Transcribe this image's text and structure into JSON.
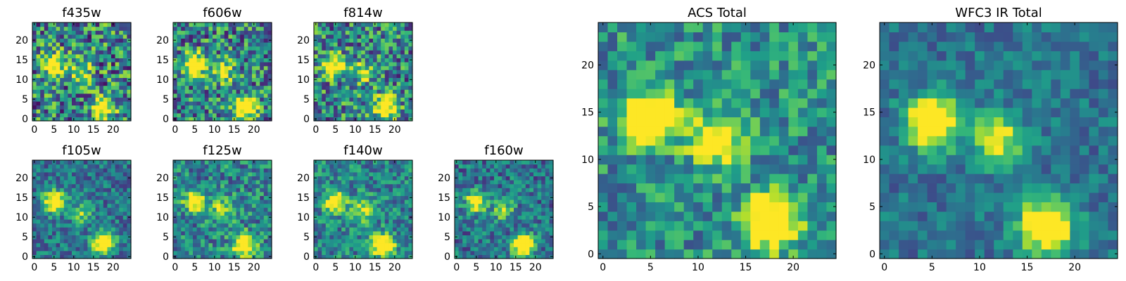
{
  "colormap": "viridis",
  "chart_data": [
    {
      "type": "heatmap",
      "title": "f435w",
      "grid": [
        25,
        25
      ],
      "xlim": [
        -0.5,
        24.5
      ],
      "ylim": [
        -0.5,
        24.5
      ],
      "xticks": [
        0,
        5,
        10,
        15,
        20
      ],
      "yticks": [
        0,
        5,
        10,
        15,
        20
      ],
      "sources": [
        {
          "x": 5,
          "y": 14,
          "level": 0.85
        },
        {
          "x": 12,
          "y": 12,
          "level": 0.55
        },
        {
          "x": 17.5,
          "y": 3,
          "level": 0.9
        }
      ],
      "noise": 0.42,
      "background": 0.45
    },
    {
      "type": "heatmap",
      "title": "f606w",
      "grid": [
        25,
        25
      ],
      "xlim": [
        -0.5,
        24.5
      ],
      "ylim": [
        -0.5,
        24.5
      ],
      "xticks": [
        0,
        5,
        10,
        15,
        20
      ],
      "yticks": [
        0,
        5,
        10,
        15,
        20
      ],
      "sources": [
        {
          "x": 5,
          "y": 14,
          "level": 0.9
        },
        {
          "x": 12,
          "y": 12,
          "level": 0.55
        },
        {
          "x": 18,
          "y": 3,
          "level": 0.95
        }
      ],
      "noise": 0.38,
      "background": 0.45
    },
    {
      "type": "heatmap",
      "title": "f814w",
      "grid": [
        25,
        25
      ],
      "xlim": [
        -0.5,
        24.5
      ],
      "ylim": [
        -0.5,
        24.5
      ],
      "xticks": [
        0,
        5,
        10,
        15,
        20
      ],
      "yticks": [
        0,
        5,
        10,
        15,
        20
      ],
      "sources": [
        {
          "x": 4.5,
          "y": 13.5,
          "level": 0.85
        },
        {
          "x": 12,
          "y": 12,
          "level": 0.5
        },
        {
          "x": 17.5,
          "y": 3,
          "level": 1.0
        }
      ],
      "noise": 0.38,
      "background": 0.45
    },
    {
      "type": "heatmap",
      "title": "f105w",
      "grid": [
        25,
        25
      ],
      "xlim": [
        -0.5,
        24.5
      ],
      "ylim": [
        -0.5,
        24.5
      ],
      "xticks": [
        0,
        5,
        10,
        15,
        20
      ],
      "yticks": [
        0,
        5,
        10,
        15,
        20
      ],
      "sources": [
        {
          "x": 5,
          "y": 14,
          "level": 0.9
        },
        {
          "x": 12,
          "y": 11,
          "level": 0.4
        },
        {
          "x": 17.5,
          "y": 3.5,
          "level": 1.0
        }
      ],
      "noise": 0.22,
      "background": 0.38
    },
    {
      "type": "heatmap",
      "title": "f125w",
      "grid": [
        25,
        25
      ],
      "xlim": [
        -0.5,
        24.5
      ],
      "ylim": [
        -0.5,
        24.5
      ],
      "xticks": [
        0,
        5,
        10,
        15,
        20
      ],
      "yticks": [
        0,
        5,
        10,
        15,
        20
      ],
      "sources": [
        {
          "x": 5,
          "y": 14,
          "level": 0.75
        },
        {
          "x": 12,
          "y": 12,
          "level": 0.5
        },
        {
          "x": 17.5,
          "y": 3,
          "level": 0.95
        }
      ],
      "noise": 0.28,
      "background": 0.45
    },
    {
      "type": "heatmap",
      "title": "f140w",
      "grid": [
        25,
        25
      ],
      "xlim": [
        -0.5,
        24.5
      ],
      "ylim": [
        -0.5,
        24.5
      ],
      "xticks": [
        0,
        5,
        10,
        15,
        20
      ],
      "yticks": [
        0,
        5,
        10,
        15,
        20
      ],
      "sources": [
        {
          "x": 5,
          "y": 14,
          "level": 0.7
        },
        {
          "x": 12,
          "y": 12,
          "level": 0.5
        },
        {
          "x": 17,
          "y": 3,
          "level": 1.0
        }
      ],
      "noise": 0.25,
      "background": 0.45
    },
    {
      "type": "heatmap",
      "title": "f160w",
      "grid": [
        25,
        25
      ],
      "xlim": [
        -0.5,
        24.5
      ],
      "ylim": [
        -0.5,
        24.5
      ],
      "xticks": [
        0,
        5,
        10,
        15,
        20
      ],
      "yticks": [
        0,
        5,
        10,
        15,
        20
      ],
      "sources": [
        {
          "x": 5,
          "y": 14,
          "level": 0.7
        },
        {
          "x": 12,
          "y": 12,
          "level": 0.45
        },
        {
          "x": 17,
          "y": 3,
          "level": 1.0
        }
      ],
      "noise": 0.25,
      "background": 0.38
    },
    {
      "type": "heatmap",
      "title": "ACS Total",
      "grid": [
        25,
        25
      ],
      "xlim": [
        -0.5,
        24.5
      ],
      "ylim": [
        -0.5,
        24.5
      ],
      "xticks": [
        0,
        5,
        10,
        15,
        20
      ],
      "yticks": [
        0,
        5,
        10,
        15,
        20
      ],
      "sources": [
        {
          "x": 5,
          "y": 14.5,
          "level": 1.0
        },
        {
          "x": 12,
          "y": 12,
          "level": 0.7
        },
        {
          "x": 17.5,
          "y": 3.5,
          "level": 1.0
        }
      ],
      "noise": 0.25,
      "background": 0.5
    },
    {
      "type": "heatmap",
      "title": "WFC3 IR Total",
      "grid": [
        25,
        25
      ],
      "xlim": [
        -0.5,
        24.5
      ],
      "ylim": [
        -0.5,
        24.5
      ],
      "xticks": [
        0,
        5,
        10,
        15,
        20
      ],
      "yticks": [
        0,
        5,
        10,
        15,
        20
      ],
      "sources": [
        {
          "x": 5,
          "y": 14,
          "level": 0.95
        },
        {
          "x": 12,
          "y": 12,
          "level": 0.6
        },
        {
          "x": 17,
          "y": 3,
          "level": 1.0
        }
      ],
      "noise": 0.16,
      "background": 0.38
    }
  ]
}
